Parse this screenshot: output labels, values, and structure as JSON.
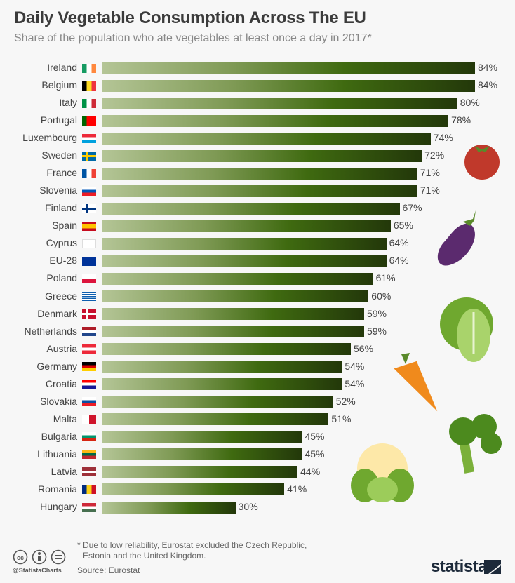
{
  "chart_data": {
    "type": "bar",
    "orientation": "horizontal",
    "title": "Daily Vegetable Consumption Across The EU",
    "subtitle": "Share of the population who ate vegetables at least once a day in 2017*",
    "categories": [
      "Ireland",
      "Belgium",
      "Italy",
      "Portugal",
      "Luxembourg",
      "Sweden",
      "France",
      "Slovenia",
      "Finland",
      "Spain",
      "Cyprus",
      "EU-28",
      "Poland",
      "Greece",
      "Denmark",
      "Netherlands",
      "Austria",
      "Germany",
      "Croatia",
      "Slovakia",
      "Malta",
      "Bulgaria",
      "Lithuania",
      "Latvia",
      "Romania",
      "Hungary"
    ],
    "values": [
      84,
      84,
      80,
      78,
      74,
      72,
      71,
      71,
      67,
      65,
      64,
      64,
      61,
      60,
      59,
      59,
      56,
      54,
      54,
      52,
      51,
      45,
      45,
      44,
      41,
      30
    ],
    "value_suffix": "%",
    "xlim": [
      0,
      84
    ],
    "grid": false,
    "bar_gradient": [
      "#b4c596",
      "#23380a"
    ]
  },
  "flags": [
    {
      "dir": "v",
      "stripes": [
        "#169b62",
        "#ffffff",
        "#ff883e"
      ]
    },
    {
      "dir": "v",
      "stripes": [
        "#000000",
        "#fdda24",
        "#ef3340"
      ]
    },
    {
      "dir": "v",
      "stripes": [
        "#009246",
        "#ffffff",
        "#ce2b37"
      ]
    },
    {
      "dir": "v",
      "stripes": [
        "#006600",
        "#ff0000",
        "#ff0000"
      ]
    },
    {
      "dir": "h",
      "stripes": [
        "#ed2939",
        "#ffffff",
        "#00a1de"
      ]
    },
    {
      "dir": "h",
      "stripes": [
        "#006aa7"
      ],
      "cross": "#fecc00"
    },
    {
      "dir": "v",
      "stripes": [
        "#0055a4",
        "#ffffff",
        "#ef4135"
      ]
    },
    {
      "dir": "h",
      "stripes": [
        "#ffffff",
        "#0057b8",
        "#ed1c24"
      ]
    },
    {
      "dir": "h",
      "stripes": [
        "#ffffff"
      ],
      "cross": "#003580"
    },
    {
      "dir": "h",
      "stripes": [
        "#c60b1e",
        "#ffc400",
        "#ffc400",
        "#c60b1e"
      ]
    },
    {
      "dir": "h",
      "stripes": [
        "#ffffff"
      ]
    },
    {
      "dir": "h",
      "stripes": [
        "#003399"
      ]
    },
    {
      "dir": "h",
      "stripes": [
        "#ffffff",
        "#dc143c"
      ]
    },
    {
      "dir": "h",
      "stripes": [
        "#0d5eaf",
        "#ffffff",
        "#0d5eaf",
        "#ffffff",
        "#0d5eaf",
        "#ffffff",
        "#0d5eaf",
        "#ffffff",
        "#0d5eaf"
      ]
    },
    {
      "dir": "h",
      "stripes": [
        "#c8102e"
      ],
      "cross": "#ffffff"
    },
    {
      "dir": "h",
      "stripes": [
        "#ae1c28",
        "#ffffff",
        "#21468b"
      ]
    },
    {
      "dir": "h",
      "stripes": [
        "#ed2939",
        "#ffffff",
        "#ed2939"
      ]
    },
    {
      "dir": "h",
      "stripes": [
        "#000000",
        "#dd0000",
        "#ffce00"
      ]
    },
    {
      "dir": "h",
      "stripes": [
        "#ff0000",
        "#ffffff",
        "#171796"
      ]
    },
    {
      "dir": "h",
      "stripes": [
        "#ffffff",
        "#0b4ea2",
        "#ee1c25"
      ]
    },
    {
      "dir": "v",
      "stripes": [
        "#ffffff",
        "#cf142b"
      ]
    },
    {
      "dir": "h",
      "stripes": [
        "#ffffff",
        "#00966e",
        "#d62612"
      ]
    },
    {
      "dir": "h",
      "stripes": [
        "#fdb913",
        "#006a44",
        "#c1272d"
      ]
    },
    {
      "dir": "h",
      "stripes": [
        "#9e3039",
        "#9e3039",
        "#ffffff",
        "#9e3039",
        "#9e3039"
      ]
    },
    {
      "dir": "v",
      "stripes": [
        "#002b7f",
        "#fcd116",
        "#ce1126"
      ]
    },
    {
      "dir": "h",
      "stripes": [
        "#ce2939",
        "#ffffff",
        "#477050"
      ]
    }
  ],
  "footer": {
    "note_line1": "* Due to low reliability, Eurostat excluded the Czech Republic,",
    "note_line2": "Estonia and the United Kingdom.",
    "source": "Source: Eurostat",
    "handle": "@StatistaCharts",
    "logo": "statista"
  },
  "icons": [
    "creative-commons-icon",
    "attribution-icon",
    "no-derivatives-icon",
    "tomato-icon",
    "eggplant-icon",
    "lettuce-icon",
    "carrot-icon",
    "broccoli-icon",
    "cauliflower-icon",
    "statista-logo-mark"
  ]
}
